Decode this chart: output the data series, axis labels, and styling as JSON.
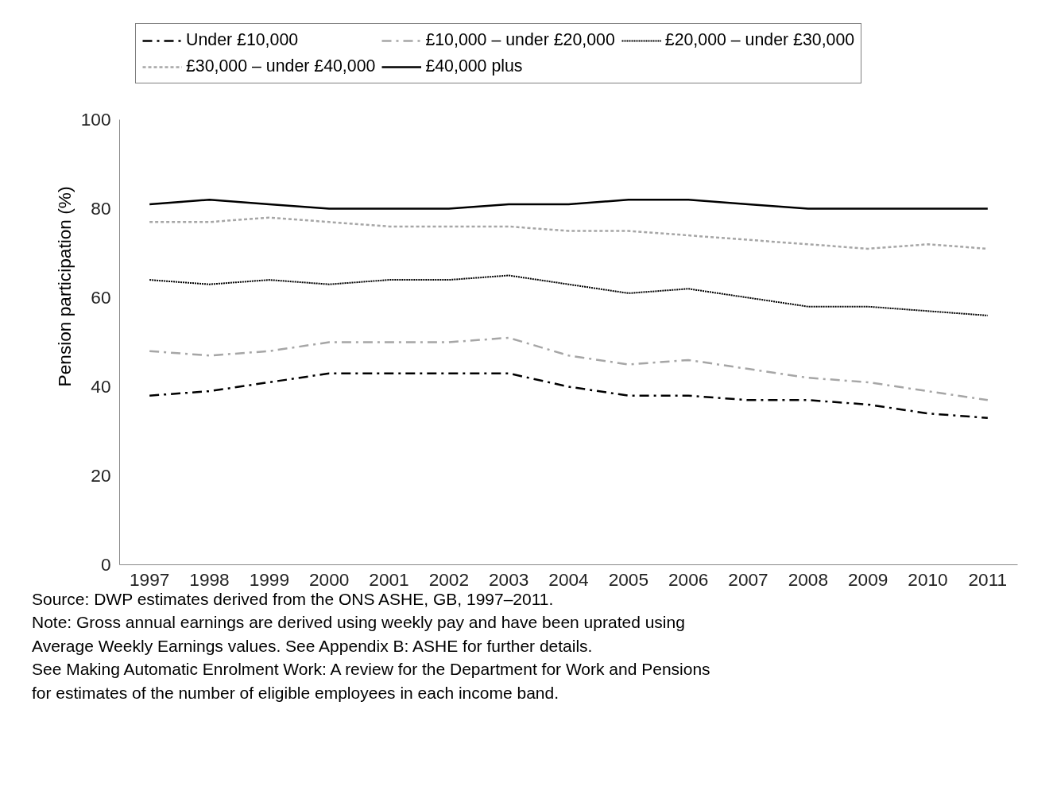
{
  "chart_data": {
    "type": "line",
    "ylabel": "Pension participation (%)",
    "categories": [
      "1997",
      "1998",
      "1999",
      "2000",
      "2001",
      "2002",
      "2003",
      "2004",
      "2005",
      "2006",
      "2007",
      "2008",
      "2009",
      "2010",
      "2011"
    ],
    "ylim": [
      0,
      100
    ],
    "yticks": [
      0,
      20,
      40,
      60,
      80,
      100
    ],
    "grid": false,
    "legend": "top",
    "marker": "none",
    "series": [
      {
        "name": "Under £10,000",
        "color": "#000000",
        "line_style": "dashdot",
        "values": [
          38,
          39,
          41,
          43,
          43,
          43,
          43,
          40,
          38,
          38,
          37,
          37,
          36,
          34,
          33
        ]
      },
      {
        "name": "£10,000 – under £20,000",
        "color": "#a6a6a6",
        "line_style": "dashdot",
        "values": [
          48,
          47,
          48,
          50,
          50,
          50,
          51,
          47,
          45,
          46,
          44,
          42,
          41,
          39,
          37
        ]
      },
      {
        "name": "£20,000 – under £30,000",
        "color": "#000000",
        "line_style": "dotted",
        "values": [
          64,
          63,
          64,
          63,
          64,
          64,
          65,
          63,
          61,
          62,
          60,
          58,
          58,
          57,
          56
        ]
      },
      {
        "name": "£30,000 – under £40,000",
        "color": "#a6a6a6",
        "line_style": "dashed",
        "values": [
          77,
          77,
          78,
          77,
          76,
          76,
          76,
          75,
          75,
          74,
          73,
          72,
          71,
          72,
          71
        ]
      },
      {
        "name": "£40,000 plus",
        "color": "#000000",
        "line_style": "solid",
        "values": [
          81,
          82,
          81,
          80,
          80,
          80,
          81,
          81,
          82,
          82,
          81,
          80,
          80,
          80,
          80
        ]
      }
    ],
    "annotations": [
      "Source: DWP estimates derived from the ONS ASHE, GB, 1997–2011.",
      "Note: Gross annual earnings are derived using weekly pay and have been uprated using",
      "Average Weekly Earnings values. See Appendix B: ASHE for further details.",
      "See Making Automatic Enrolment Work: A review for the Department for Work and Pensions",
      "for estimates of the number of eligible employees in each income band."
    ]
  }
}
